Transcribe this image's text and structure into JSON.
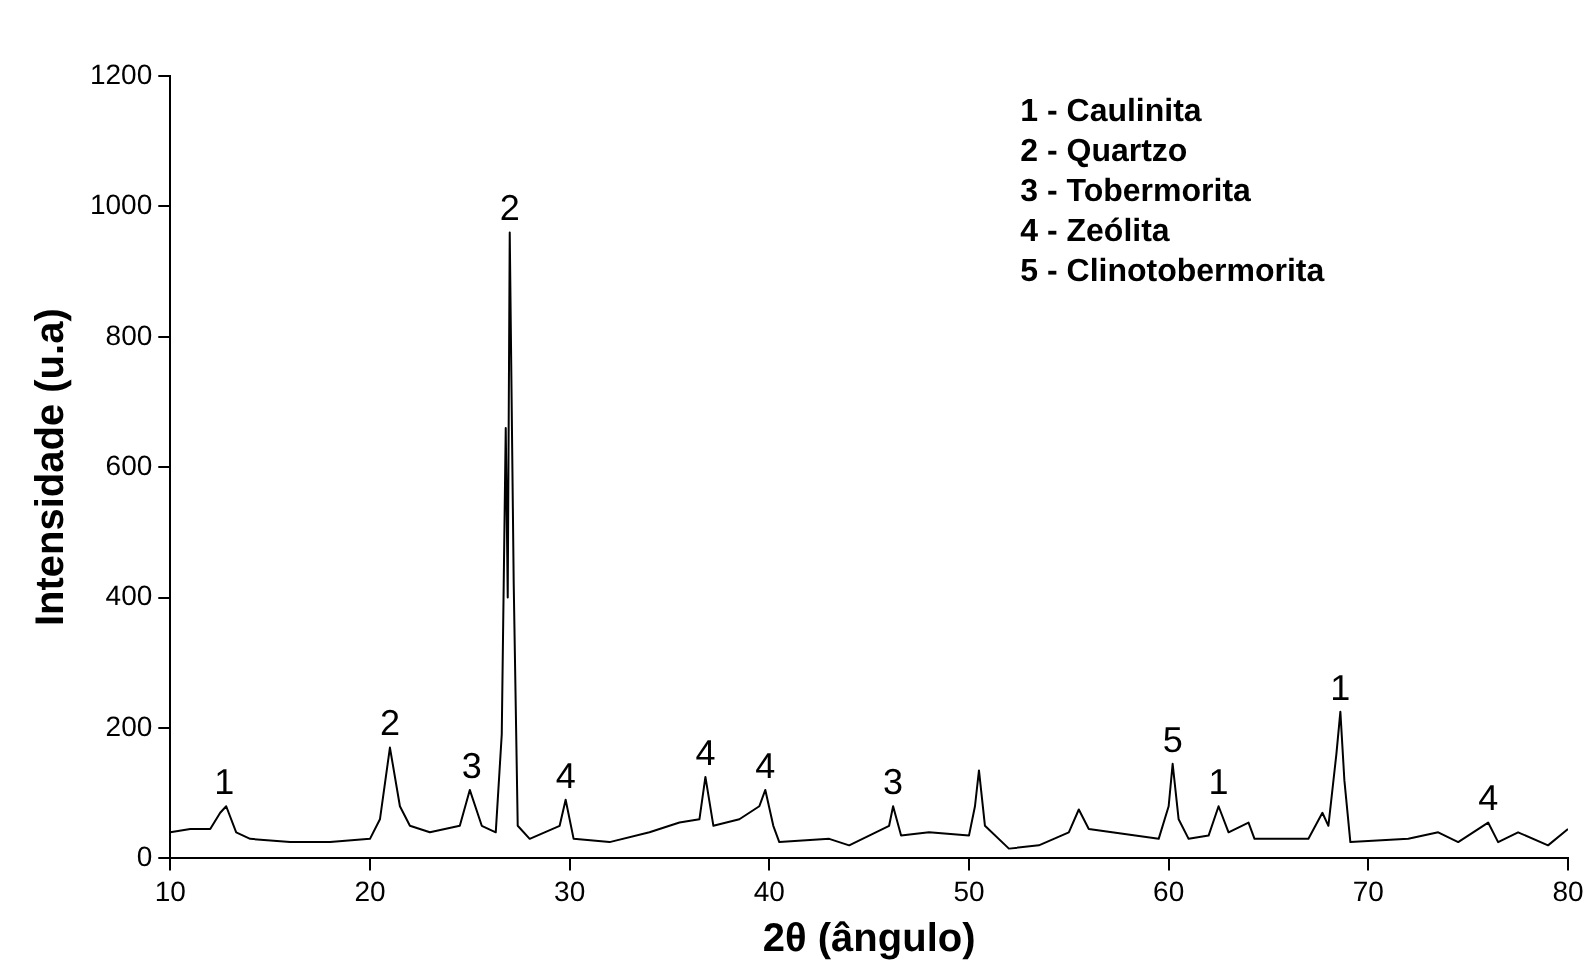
{
  "chart_data": {
    "type": "line",
    "xlabel": "2θ (ângulo)",
    "ylabel": "Intensidade (u.a)",
    "x": [
      10,
      11,
      12,
      12.5,
      12.8,
      13.3,
      14,
      16,
      18,
      20,
      20.5,
      21,
      21.5,
      22,
      23,
      24.5,
      25,
      25.6,
      26.3,
      26.6,
      26.8,
      26.9,
      27,
      27.2,
      27.4,
      28,
      29.5,
      29.8,
      30.2,
      32,
      34,
      35.5,
      36.5,
      36.8,
      37.2,
      38.5,
      39.5,
      39.8,
      40.2,
      40.5,
      43,
      44,
      46,
      46.2,
      46.6,
      48,
      50,
      50.3,
      50.5,
      50.8,
      52,
      53.5,
      55,
      55.5,
      56,
      59.5,
      60,
      60.2,
      60.5,
      61,
      62,
      62.5,
      63,
      64,
      64.3,
      67,
      67.7,
      68,
      68.4,
      68.6,
      68.8,
      69.1,
      72,
      73.5,
      74.5,
      76,
      76.5,
      77.5,
      79,
      80
    ],
    "series": [
      {
        "color": "#000000",
        "values": [
          40,
          45,
          45,
          70,
          80,
          40,
          30,
          25,
          25,
          30,
          60,
          170,
          80,
          50,
          40,
          50,
          105,
          50,
          40,
          190,
          660,
          400,
          960,
          420,
          50,
          30,
          50,
          90,
          30,
          25,
          40,
          55,
          60,
          125,
          50,
          60,
          80,
          105,
          50,
          25,
          30,
          20,
          50,
          80,
          35,
          40,
          35,
          80,
          135,
          50,
          15,
          20,
          40,
          75,
          45,
          30,
          80,
          145,
          60,
          30,
          35,
          80,
          40,
          55,
          30,
          30,
          70,
          50,
          160,
          225,
          120,
          25,
          30,
          40,
          25,
          55,
          25,
          40,
          20,
          45
        ]
      }
    ],
    "xlim": [
      10,
      80
    ],
    "xticks": [
      10,
      20,
      30,
      40,
      50,
      60,
      70,
      80
    ],
    "ylim": [
      0,
      1200
    ],
    "yticks": [
      0,
      200,
      400,
      600,
      800,
      1000,
      1200
    ],
    "grid": false,
    "legend": false,
    "marker": "none",
    "line_style": "solid",
    "annotations": [
      {
        "text": "1",
        "x": 12.7,
        "y": 80
      },
      {
        "text": "2",
        "x": 21,
        "y": 170
      },
      {
        "text": "3",
        "x": 25.1,
        "y": 105
      },
      {
        "text": "2",
        "x": 27,
        "y": 960
      },
      {
        "text": "4",
        "x": 29.8,
        "y": 90
      },
      {
        "text": "4",
        "x": 36.8,
        "y": 125
      },
      {
        "text": "4",
        "x": 39.8,
        "y": 105
      },
      {
        "text": "3",
        "x": 46.2,
        "y": 80
      },
      {
        "text": "5",
        "x": 60.2,
        "y": 145
      },
      {
        "text": "1",
        "x": 62.5,
        "y": 80
      },
      {
        "text": "1",
        "x": 68.6,
        "y": 225
      },
      {
        "text": "4",
        "x": 76,
        "y": 55
      },
      "1 - Caulinita",
      "2 - Quartzo",
      "3 - Tobermorita",
      "4 - Zeólita",
      "5 - Clinotobermorita"
    ]
  }
}
